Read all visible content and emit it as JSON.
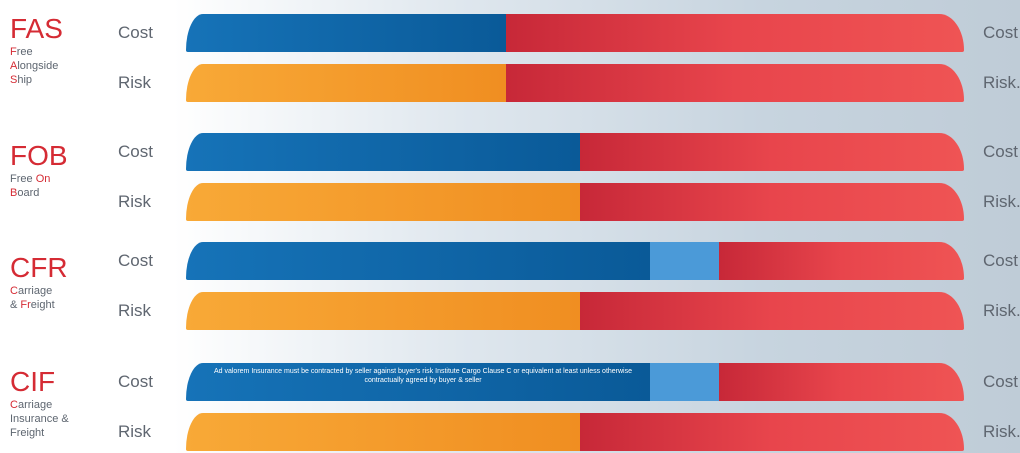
{
  "terms": [
    {
      "code": "FAS",
      "lines": [
        [
          [
            "F",
            "hl"
          ],
          [
            "ree",
            ""
          ]
        ],
        [
          [
            "A",
            "hl"
          ],
          [
            "longside",
            ""
          ]
        ],
        [
          [
            "S",
            "hl"
          ],
          [
            "hip",
            ""
          ]
        ]
      ],
      "cost": {
        "segments": [
          {
            "kind": "blue",
            "share": 0.411
          },
          {
            "kind": "red",
            "share": 0.589
          }
        ]
      },
      "risk": {
        "segments": [
          {
            "kind": "orange",
            "share": 0.411
          },
          {
            "kind": "red",
            "share": 0.589
          }
        ]
      }
    },
    {
      "code": "FOB",
      "lines": [
        [
          [
            "Free ",
            ""
          ],
          [
            "On",
            "hl"
          ]
        ],
        [
          [
            "B",
            "hl"
          ],
          [
            "oard",
            ""
          ]
        ]
      ],
      "cost": {
        "segments": [
          {
            "kind": "blue",
            "share": 0.506
          },
          {
            "kind": "red",
            "share": 0.494
          }
        ]
      },
      "risk": {
        "segments": [
          {
            "kind": "orange",
            "share": 0.506
          },
          {
            "kind": "red",
            "share": 0.494
          }
        ]
      }
    },
    {
      "code": "CFR",
      "lines": [
        [
          [
            "C",
            "hl"
          ],
          [
            "arriage",
            ""
          ]
        ],
        [
          [
            "& ",
            ""
          ],
          [
            "Fr",
            "hl"
          ],
          [
            "eight",
            ""
          ]
        ]
      ],
      "cost": {
        "segments": [
          {
            "kind": "blue",
            "share": 0.597
          },
          {
            "kind": "light",
            "share": 0.088
          },
          {
            "kind": "red",
            "share": 0.315
          }
        ]
      },
      "risk": {
        "segments": [
          {
            "kind": "orange",
            "share": 0.506
          },
          {
            "kind": "red",
            "share": 0.494
          }
        ]
      }
    },
    {
      "code": "CIF",
      "lines": [
        [
          [
            "C",
            "hl"
          ],
          [
            "arriage",
            ""
          ]
        ],
        [
          [
            "Insurance &",
            ""
          ]
        ],
        [
          [
            "Freight",
            ""
          ]
        ]
      ],
      "cost": {
        "segments": [
          {
            "kind": "blue",
            "share": 0.597
          },
          {
            "kind": "light",
            "share": 0.088
          },
          {
            "kind": "red",
            "share": 0.315
          }
        ],
        "note": "Ad valorem Insurance must be contracted by seller against buyer's risk Institute Cargo Clause C or equivalent at least unless otherwise contractually agreed by buyer & seller"
      },
      "risk": {
        "segments": [
          {
            "kind": "orange",
            "share": 0.506
          },
          {
            "kind": "red",
            "share": 0.494
          }
        ]
      }
    }
  ],
  "labels": {
    "cost": "Cost",
    "risk": "Risk",
    "risk_right": "Risk."
  },
  "colors": {
    "seller_cost": "#0a5a98",
    "insurance": "#4b9ad8",
    "seller_risk": "#f08e21",
    "buyer": "#e8454c",
    "term_code": "#d52b34"
  }
}
